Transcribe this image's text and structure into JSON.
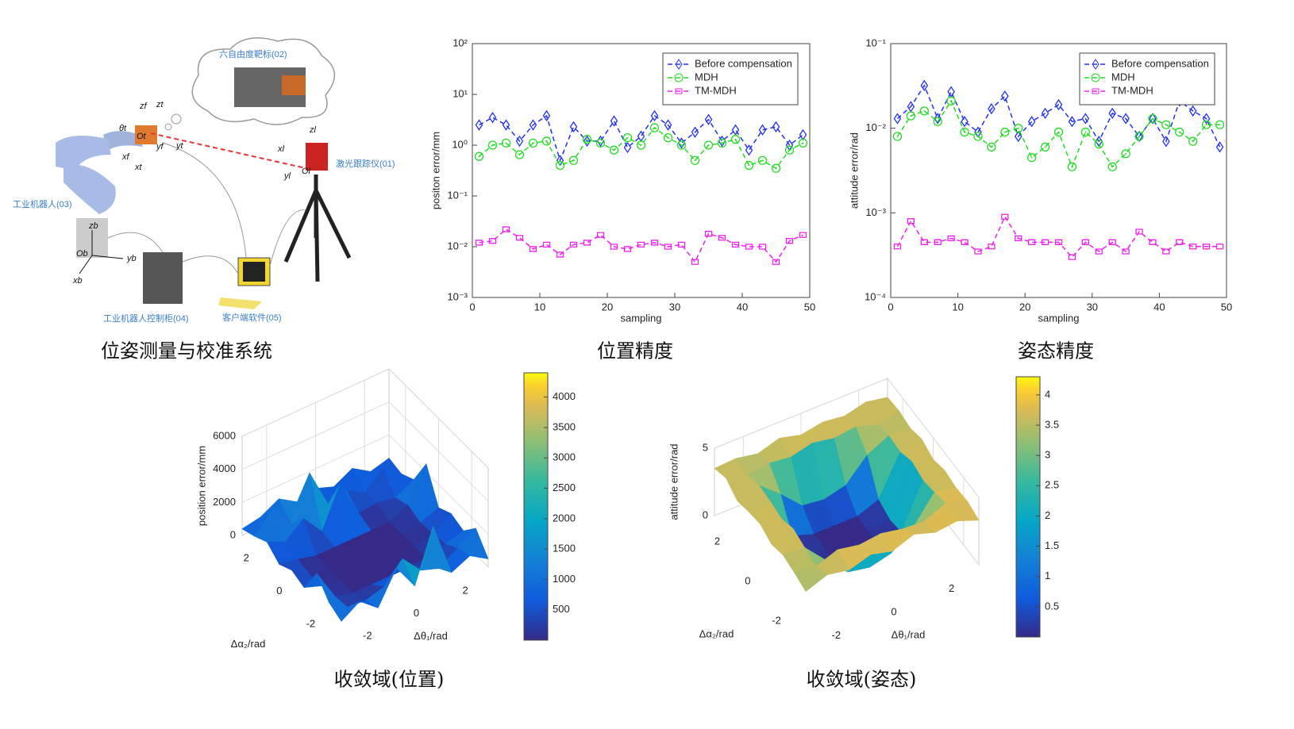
{
  "diagram": {
    "title": "位姿测量与校准系统",
    "labels": [
      "六自由度靶标(02)",
      "激光跟踪仪(01)",
      "工业机器人(03)",
      "工业机器人控制柜(04)",
      "客户端软件(05)"
    ],
    "axes": [
      "zf",
      "zt",
      "θt",
      "Ot",
      "yf",
      "yt",
      "xf",
      "xt",
      "zl",
      "xl",
      "yl",
      "Ol",
      "zb",
      "Ob",
      "yb",
      "xb"
    ]
  },
  "chart_data": [
    {
      "type": "line",
      "title": "位置精度",
      "xlabel": "sampling",
      "ylabel": "positon error/mm",
      "log_y": true,
      "x": [
        1,
        3,
        5,
        7,
        9,
        11,
        13,
        15,
        17,
        19,
        21,
        23,
        25,
        27,
        29,
        31,
        33,
        35,
        37,
        39,
        41,
        43,
        45,
        47,
        49
      ],
      "xlim": [
        0,
        50
      ],
      "xticks": [
        0,
        10,
        20,
        30,
        40,
        50
      ],
      "ylim": [
        0.001,
        100
      ],
      "yticks": [
        {
          "value": 0.001,
          "label": "10⁻³"
        },
        {
          "value": 0.01,
          "label": "10⁻²"
        },
        {
          "value": 0.1,
          "label": "10⁻¹"
        },
        {
          "value": 1,
          "label": "10⁰"
        },
        {
          "value": 10,
          "label": "10¹"
        },
        {
          "value": 100,
          "label": "10²"
        }
      ],
      "legend": "upper right",
      "series": [
        {
          "name": "Before compensation",
          "color": "#2233ee",
          "marker": "diamond",
          "values": [
            2.5,
            3.5,
            2.5,
            1.2,
            2.5,
            3.8,
            0.5,
            2.3,
            1.2,
            1.2,
            3,
            0.9,
            1.5,
            3.8,
            2.5,
            1.1,
            1.8,
            3.2,
            1.2,
            2,
            0.8,
            2,
            2.3,
            1,
            1.6
          ]
        },
        {
          "name": "MDH",
          "color": "#22dd22",
          "marker": "circle",
          "values": [
            0.6,
            1,
            1.1,
            0.65,
            1.1,
            1.2,
            0.4,
            0.5,
            1.3,
            1.1,
            0.8,
            1.4,
            1,
            2.2,
            1.4,
            1,
            0.5,
            1,
            1.1,
            1.3,
            0.4,
            0.5,
            0.35,
            0.8,
            1.1
          ]
        },
        {
          "name": "TM-MDH",
          "color": "#ee22ee",
          "marker": "square",
          "values": [
            0.012,
            0.013,
            0.022,
            0.015,
            0.009,
            0.011,
            0.007,
            0.011,
            0.012,
            0.017,
            0.01,
            0.009,
            0.011,
            0.012,
            0.01,
            0.011,
            0.005,
            0.018,
            0.015,
            0.011,
            0.01,
            0.01,
            0.005,
            0.013,
            0.017
          ]
        }
      ]
    },
    {
      "type": "line",
      "title": "姿态精度",
      "xlabel": "sampling",
      "ylabel": "attitude error/rad",
      "log_y": true,
      "x": [
        1,
        3,
        5,
        7,
        9,
        11,
        13,
        15,
        17,
        19,
        21,
        23,
        25,
        27,
        29,
        31,
        33,
        35,
        37,
        39,
        41,
        43,
        45,
        47,
        49
      ],
      "xlim": [
        0,
        50
      ],
      "xticks": [
        0,
        10,
        20,
        30,
        40,
        50
      ],
      "ylim": [
        0.0001,
        0.1
      ],
      "yticks": [
        {
          "value": 0.0001,
          "label": "10⁻⁴"
        },
        {
          "value": 0.001,
          "label": "10⁻³"
        },
        {
          "value": 0.01,
          "label": "10⁻²"
        },
        {
          "value": 0.1,
          "label": "10⁻¹"
        }
      ],
      "legend": "upper right",
      "series": [
        {
          "name": "Before compensation",
          "color": "#2233ee",
          "marker": "diamond",
          "values": [
            0.013,
            0.018,
            0.032,
            0.013,
            0.027,
            0.012,
            0.009,
            0.017,
            0.024,
            0.008,
            0.012,
            0.015,
            0.019,
            0.012,
            0.013,
            0.007,
            0.015,
            0.013,
            0.008,
            0.013,
            0.007,
            0.021,
            0.016,
            0.013,
            0.006
          ]
        },
        {
          "name": "MDH",
          "color": "#22dd22",
          "marker": "circle",
          "values": [
            0.008,
            0.014,
            0.016,
            0.012,
            0.021,
            0.009,
            0.008,
            0.006,
            0.009,
            0.01,
            0.0045,
            0.006,
            0.009,
            0.0035,
            0.009,
            0.0065,
            0.0035,
            0.005,
            0.008,
            0.013,
            0.011,
            0.009,
            0.007,
            0.011,
            0.011
          ]
        },
        {
          "name": "TM-MDH",
          "color": "#ee22ee",
          "marker": "square",
          "values": [
            0.0004,
            0.0008,
            0.00045,
            0.00045,
            0.0005,
            0.00045,
            0.00035,
            0.0004,
            0.0009,
            0.0005,
            0.00045,
            0.00045,
            0.00045,
            0.0003,
            0.00045,
            0.00035,
            0.00045,
            0.00035,
            0.0006,
            0.00045,
            0.00035,
            0.00045,
            0.0004,
            0.0004,
            0.0004
          ]
        }
      ]
    },
    {
      "type": "surface",
      "title": "收敛域(位置)",
      "xlabel": "Δθ₁/rad",
      "ylabel": "Δα₂/rad",
      "zlabel": "position error/mm",
      "x": [
        -3,
        -2.25,
        -1.5,
        -0.75,
        0,
        0.75,
        1.5,
        2.25,
        3
      ],
      "y": [
        -3,
        -2.25,
        -1.5,
        -0.75,
        0,
        0.75,
        1.5,
        2.25,
        3
      ],
      "z": [
        [
          800,
          1500,
          600,
          2500,
          900,
          4000,
          700,
          1200,
          500
        ],
        [
          1200,
          400,
          300,
          600,
          1800,
          600,
          200,
          900,
          1600
        ],
        [
          2200,
          300,
          0,
          0,
          0,
          0,
          100,
          400,
          700
        ],
        [
          600,
          200,
          0,
          0,
          0,
          0,
          0,
          300,
          1000
        ],
        [
          900,
          100,
          0,
          0,
          0,
          0,
          0,
          200,
          600
        ],
        [
          500,
          300,
          0,
          0,
          0,
          0,
          0,
          500,
          2500
        ],
        [
          1100,
          600,
          1500,
          200,
          2600,
          300,
          400,
          200,
          800
        ],
        [
          700,
          1800,
          400,
          3000,
          600,
          900,
          300,
          1200,
          400
        ],
        [
          400,
          600,
          1200,
          500,
          800,
          400,
          1000,
          300,
          600
        ]
      ],
      "xlim": [
        -3,
        3
      ],
      "ylim": [
        -3,
        3
      ],
      "zlim": [
        0,
        6000
      ],
      "xticks": [
        -2,
        0,
        2
      ],
      "yticks": [
        -2,
        0,
        2
      ],
      "zticks": [
        0,
        2000,
        4000,
        6000
      ],
      "colormap": "parula",
      "clim": [
        0,
        4400
      ],
      "cticks": [
        500,
        1000,
        1500,
        2000,
        2500,
        3000,
        3500,
        4000
      ]
    },
    {
      "type": "surface",
      "title": "收敛域(姿态)",
      "xlabel": "Δθ₁/rad",
      "ylabel": "Δα₂/rad",
      "zlabel": "attitude error/rad",
      "x": [
        -3,
        -2.25,
        -1.5,
        -0.75,
        0,
        0.75,
        1.5,
        2.25,
        3
      ],
      "y": [
        -3,
        -2.25,
        -1.5,
        -0.75,
        0,
        0.75,
        1.5,
        2.25,
        3
      ],
      "z": [
        [
          3.2,
          3.8,
          3.5,
          4,
          3.6,
          4.2,
          3.7,
          3.9,
          3.3
        ],
        [
          3.5,
          3.3,
          3.9,
          3.6,
          3.8,
          3.5,
          3.4,
          4.1,
          3.6
        ],
        [
          3.7,
          3.6,
          2,
          0.5,
          0.2,
          0.6,
          1.8,
          3.8,
          3.5
        ],
        [
          3.4,
          3.9,
          0.3,
          0,
          0,
          0,
          0.4,
          3.6,
          3.7
        ],
        [
          3.8,
          3.5,
          0.1,
          0,
          0,
          0,
          0.2,
          3.9,
          3.4
        ],
        [
          3.6,
          3.7,
          0.5,
          0,
          0,
          0,
          0.6,
          3.5,
          3.8
        ],
        [
          3.3,
          3.8,
          2.5,
          1,
          0.8,
          1.2,
          2.8,
          3.6,
          3.5
        ],
        [
          3.9,
          3.4,
          3.7,
          3.5,
          3.9,
          3.6,
          3.8,
          3.3,
          3.7
        ],
        [
          3.5,
          3.6,
          3.3,
          3.8,
          3.4,
          3.7,
          3.5,
          3.9,
          3.6
        ]
      ],
      "xlim": [
        -3,
        3
      ],
      "ylim": [
        -3,
        3
      ],
      "zlim": [
        0,
        5
      ],
      "xticks": [
        -2,
        0,
        2
      ],
      "yticks": [
        -2,
        0,
        2
      ],
      "zticks": [
        0,
        5
      ],
      "colormap": "parula",
      "clim": [
        0,
        4.3
      ],
      "cticks": [
        0.5,
        1,
        1.5,
        2,
        2.5,
        3,
        3.5,
        4
      ]
    }
  ]
}
